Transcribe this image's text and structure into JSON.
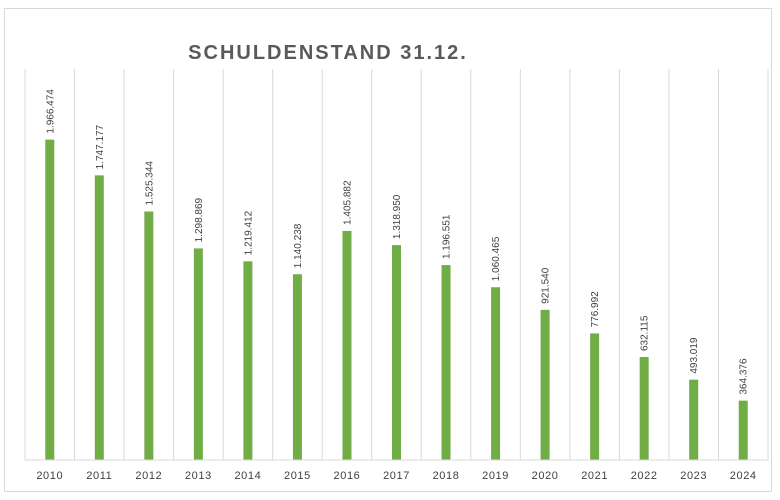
{
  "chart_data": {
    "type": "bar",
    "title": "SCHULDENSTAND 31.12.",
    "xlabel": "",
    "ylabel": "",
    "categories": [
      "2010",
      "2011",
      "2012",
      "2013",
      "2014",
      "2015",
      "2016",
      "2017",
      "2018",
      "2019",
      "2020",
      "2021",
      "2022",
      "2023",
      "2024"
    ],
    "values": [
      1966474,
      1747177,
      1525344,
      1298869,
      1219412,
      1140238,
      1405882,
      1318950,
      1196551,
      1060465,
      921540,
      776992,
      632115,
      493019,
      364376
    ],
    "value_labels": [
      "1.966.474",
      "1.747.177",
      "1.525.344",
      "1.298.869",
      "1.219.412",
      "1.140.238",
      "1.405.882",
      "1.318.950",
      "1.196.551",
      "1.060.465",
      "921.540",
      "776.992",
      "632.115",
      "493.019",
      "364.376"
    ],
    "ylim": [
      0,
      2400000
    ],
    "bar_color": "#70ad47",
    "grid": "vertical category separators",
    "legend": "none"
  }
}
